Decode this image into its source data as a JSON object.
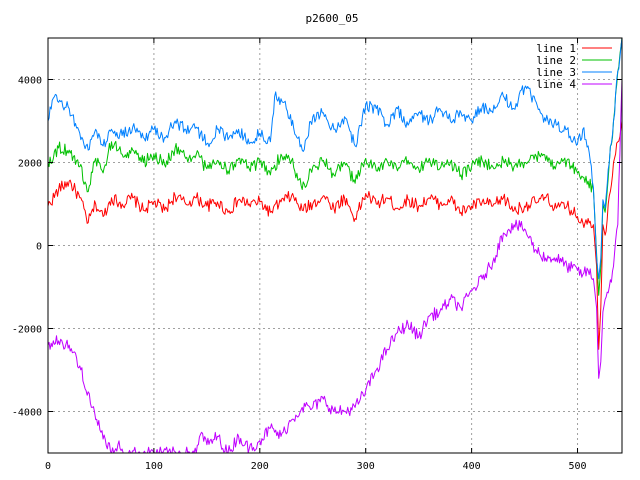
{
  "chart_data": {
    "type": "line",
    "title": "p2600_05",
    "xlabel": "",
    "ylabel": "",
    "xlim": [
      0,
      542
    ],
    "ylim": [
      -5000,
      5000
    ],
    "xticks": [
      0,
      100,
      200,
      300,
      400,
      500
    ],
    "yticks": [
      -4000,
      -2000,
      0,
      2000,
      4000
    ],
    "grid": true,
    "legend_position": "top-right",
    "series": [
      {
        "name": "line 1",
        "color": "#ff0000",
        "points": [
          [
            0,
            950
          ],
          [
            10,
            1350
          ],
          [
            20,
            1550
          ],
          [
            30,
            1150
          ],
          [
            38,
            550
          ],
          [
            45,
            1000
          ],
          [
            52,
            700
          ],
          [
            60,
            1150
          ],
          [
            70,
            1000
          ],
          [
            80,
            1150
          ],
          [
            90,
            850
          ],
          [
            100,
            1050
          ],
          [
            110,
            850
          ],
          [
            120,
            1200
          ],
          [
            130,
            1000
          ],
          [
            140,
            1150
          ],
          [
            150,
            950
          ],
          [
            160,
            1050
          ],
          [
            170,
            800
          ],
          [
            180,
            1100
          ],
          [
            190,
            1000
          ],
          [
            200,
            1050
          ],
          [
            210,
            800
          ],
          [
            220,
            1050
          ],
          [
            230,
            1200
          ],
          [
            240,
            850
          ],
          [
            250,
            1000
          ],
          [
            260,
            1200
          ],
          [
            270,
            900
          ],
          [
            280,
            1150
          ],
          [
            290,
            650
          ],
          [
            300,
            1250
          ],
          [
            310,
            1000
          ],
          [
            320,
            1150
          ],
          [
            330,
            900
          ],
          [
            340,
            1100
          ],
          [
            350,
            950
          ],
          [
            360,
            1150
          ],
          [
            370,
            1000
          ],
          [
            380,
            1100
          ],
          [
            390,
            800
          ],
          [
            400,
            950
          ],
          [
            410,
            1050
          ],
          [
            420,
            950
          ],
          [
            430,
            1150
          ],
          [
            440,
            850
          ],
          [
            450,
            950
          ],
          [
            460,
            1050
          ],
          [
            470,
            1150
          ],
          [
            480,
            900
          ],
          [
            490,
            950
          ],
          [
            500,
            700
          ],
          [
            505,
            550
          ],
          [
            510,
            650
          ],
          [
            515,
            500
          ],
          [
            518,
            -500
          ],
          [
            520,
            -2500
          ],
          [
            522,
            -1500
          ],
          [
            524,
            500
          ],
          [
            526,
            250
          ],
          [
            530,
            1200
          ],
          [
            534,
            2000
          ],
          [
            538,
            2500
          ],
          [
            542,
            3000
          ]
        ]
      },
      {
        "name": "line 2",
        "color": "#00c000",
        "points": [
          [
            0,
            2000
          ],
          [
            10,
            2350
          ],
          [
            20,
            2300
          ],
          [
            30,
            1900
          ],
          [
            38,
            1300
          ],
          [
            45,
            2100
          ],
          [
            52,
            1750
          ],
          [
            60,
            2500
          ],
          [
            70,
            2200
          ],
          [
            80,
            2300
          ],
          [
            90,
            2000
          ],
          [
            100,
            2200
          ],
          [
            110,
            1950
          ],
          [
            120,
            2350
          ],
          [
            130,
            2100
          ],
          [
            140,
            2200
          ],
          [
            150,
            1850
          ],
          [
            160,
            2050
          ],
          [
            170,
            1800
          ],
          [
            180,
            2100
          ],
          [
            190,
            1850
          ],
          [
            200,
            2000
          ],
          [
            210,
            1700
          ],
          [
            220,
            2200
          ],
          [
            230,
            2050
          ],
          [
            240,
            1350
          ],
          [
            250,
            1900
          ],
          [
            260,
            2050
          ],
          [
            270,
            1700
          ],
          [
            280,
            2000
          ],
          [
            290,
            1500
          ],
          [
            300,
            2100
          ],
          [
            310,
            1800
          ],
          [
            320,
            2050
          ],
          [
            330,
            1800
          ],
          [
            340,
            2050
          ],
          [
            350,
            1850
          ],
          [
            360,
            2100
          ],
          [
            370,
            1850
          ],
          [
            380,
            2000
          ],
          [
            390,
            1700
          ],
          [
            400,
            1900
          ],
          [
            410,
            2050
          ],
          [
            420,
            1900
          ],
          [
            430,
            2050
          ],
          [
            440,
            1900
          ],
          [
            450,
            2000
          ],
          [
            460,
            2200
          ],
          [
            470,
            2050
          ],
          [
            480,
            1950
          ],
          [
            490,
            2050
          ],
          [
            500,
            1750
          ],
          [
            505,
            1650
          ],
          [
            510,
            1550
          ],
          [
            515,
            1350
          ],
          [
            518,
            -200
          ],
          [
            520,
            -1200
          ],
          [
            522,
            -500
          ],
          [
            524,
            1000
          ],
          [
            526,
            800
          ],
          [
            530,
            2000
          ],
          [
            534,
            3000
          ],
          [
            538,
            4200
          ],
          [
            542,
            5000
          ]
        ]
      },
      {
        "name": "line 3",
        "color": "#0080ff",
        "points": [
          [
            0,
            3000
          ],
          [
            5,
            3550
          ],
          [
            10,
            3450
          ],
          [
            20,
            3300
          ],
          [
            30,
            2700
          ],
          [
            38,
            2300
          ],
          [
            45,
            2800
          ],
          [
            52,
            2400
          ],
          [
            60,
            2800
          ],
          [
            70,
            2650
          ],
          [
            80,
            2850
          ],
          [
            90,
            2600
          ],
          [
            100,
            2800
          ],
          [
            110,
            2600
          ],
          [
            120,
            3000
          ],
          [
            130,
            2800
          ],
          [
            140,
            2850
          ],
          [
            150,
            2450
          ],
          [
            160,
            2800
          ],
          [
            170,
            2550
          ],
          [
            180,
            2800
          ],
          [
            190,
            2450
          ],
          [
            200,
            2700
          ],
          [
            210,
            2500
          ],
          [
            215,
            3700
          ],
          [
            225,
            3300
          ],
          [
            235,
            2600
          ],
          [
            240,
            2300
          ],
          [
            250,
            3100
          ],
          [
            260,
            3200
          ],
          [
            270,
            2800
          ],
          [
            280,
            3100
          ],
          [
            290,
            2400
          ],
          [
            300,
            3400
          ],
          [
            310,
            3300
          ],
          [
            320,
            2900
          ],
          [
            330,
            3300
          ],
          [
            340,
            2900
          ],
          [
            350,
            3200
          ],
          [
            360,
            3000
          ],
          [
            370,
            3300
          ],
          [
            380,
            3000
          ],
          [
            390,
            3200
          ],
          [
            400,
            3000
          ],
          [
            410,
            3350
          ],
          [
            420,
            3200
          ],
          [
            430,
            3600
          ],
          [
            440,
            3300
          ],
          [
            450,
            3800
          ],
          [
            460,
            3500
          ],
          [
            470,
            3000
          ],
          [
            480,
            2900
          ],
          [
            490,
            2800
          ],
          [
            500,
            2450
          ],
          [
            505,
            2800
          ],
          [
            510,
            2400
          ],
          [
            515,
            1400
          ],
          [
            518,
            -300
          ],
          [
            520,
            -800
          ],
          [
            522,
            -300
          ],
          [
            524,
            1100
          ],
          [
            526,
            900
          ],
          [
            530,
            2000
          ],
          [
            534,
            3000
          ],
          [
            538,
            4200
          ],
          [
            542,
            5000
          ]
        ]
      },
      {
        "name": "line 4",
        "color": "#c000ff",
        "points": [
          [
            0,
            -2400
          ],
          [
            10,
            -2300
          ],
          [
            20,
            -2400
          ],
          [
            30,
            -2900
          ],
          [
            40,
            -3800
          ],
          [
            50,
            -4500
          ],
          [
            60,
            -5000
          ],
          [
            66,
            -4800
          ],
          [
            72,
            -5000
          ],
          [
            140,
            -5000
          ],
          [
            145,
            -4500
          ],
          [
            150,
            -4800
          ],
          [
            160,
            -4600
          ],
          [
            170,
            -5000
          ],
          [
            180,
            -4600
          ],
          [
            190,
            -4900
          ],
          [
            200,
            -4700
          ],
          [
            210,
            -4400
          ],
          [
            220,
            -4600
          ],
          [
            230,
            -4200
          ],
          [
            240,
            -3900
          ],
          [
            250,
            -3900
          ],
          [
            260,
            -3700
          ],
          [
            270,
            -4000
          ],
          [
            280,
            -4000
          ],
          [
            290,
            -3900
          ],
          [
            300,
            -3500
          ],
          [
            310,
            -3000
          ],
          [
            320,
            -2500
          ],
          [
            330,
            -2100
          ],
          [
            340,
            -1900
          ],
          [
            350,
            -2200
          ],
          [
            360,
            -1700
          ],
          [
            370,
            -1600
          ],
          [
            380,
            -1300
          ],
          [
            390,
            -1500
          ],
          [
            400,
            -1100
          ],
          [
            410,
            -800
          ],
          [
            420,
            -400
          ],
          [
            430,
            300
          ],
          [
            440,
            500
          ],
          [
            450,
            400
          ],
          [
            460,
            -100
          ],
          [
            470,
            -300
          ],
          [
            480,
            -300
          ],
          [
            490,
            -500
          ],
          [
            500,
            -600
          ],
          [
            505,
            -700
          ],
          [
            510,
            -600
          ],
          [
            515,
            -800
          ],
          [
            518,
            -1500
          ],
          [
            520,
            -3200
          ],
          [
            522,
            -2800
          ],
          [
            524,
            -1600
          ],
          [
            526,
            -1300
          ],
          [
            530,
            -1000
          ],
          [
            534,
            -500
          ],
          [
            538,
            500
          ],
          [
            542,
            4000
          ]
        ]
      }
    ]
  }
}
